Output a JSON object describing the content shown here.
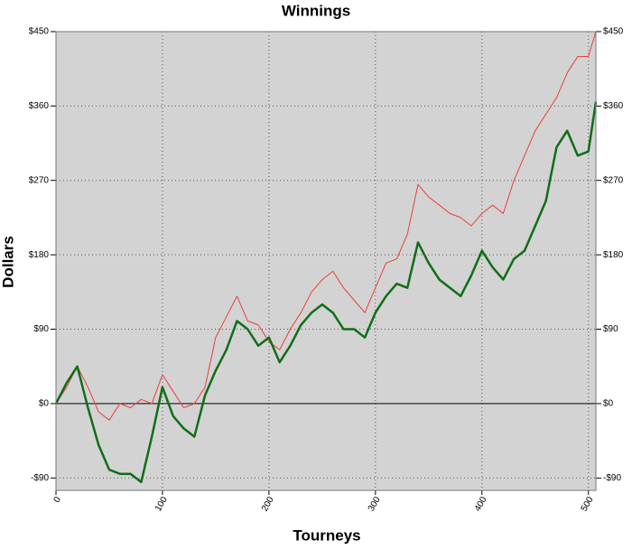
{
  "chart_data": {
    "type": "line",
    "title": "Winnings",
    "x_label": "Tourneys",
    "y_label": "Dollars",
    "x": [
      0,
      10,
      20,
      30,
      40,
      50,
      60,
      70,
      80,
      90,
      100,
      110,
      120,
      130,
      140,
      150,
      160,
      170,
      180,
      190,
      200,
      210,
      220,
      230,
      240,
      250,
      260,
      270,
      280,
      290,
      300,
      310,
      320,
      330,
      340,
      350,
      360,
      370,
      380,
      390,
      400,
      410,
      420,
      430,
      440,
      450,
      460,
      470,
      480,
      490,
      500,
      507
    ],
    "series": [
      {
        "name": "Winnings (red)",
        "color": "#e8403a",
        "width": 1,
        "values": [
          0,
          20,
          45,
          20,
          -10,
          -20,
          0,
          -5,
          5,
          0,
          35,
          15,
          -5,
          0,
          20,
          80,
          105,
          130,
          100,
          95,
          75,
          65,
          90,
          110,
          135,
          150,
          160,
          140,
          125,
          110,
          140,
          170,
          175,
          205,
          265,
          250,
          240,
          230,
          225,
          215,
          230,
          240,
          230,
          270,
          300,
          330,
          350,
          370,
          400,
          420,
          420,
          450
        ]
      },
      {
        "name": "Winnings (green)",
        "color": "#0f6e17",
        "width": 2.5,
        "values": [
          0,
          25,
          45,
          -5,
          -50,
          -80,
          -85,
          -85,
          -95,
          -40,
          20,
          -15,
          -30,
          -40,
          10,
          40,
          65,
          100,
          90,
          70,
          80,
          50,
          70,
          95,
          110,
          120,
          110,
          90,
          90,
          80,
          110,
          130,
          145,
          140,
          195,
          170,
          150,
          140,
          130,
          155,
          185,
          165,
          150,
          175,
          185,
          215,
          245,
          310,
          330,
          300,
          305,
          365
        ]
      }
    ],
    "xlim": [
      0,
      507
    ],
    "ylim": [
      -105,
      450
    ],
    "xticks": [
      0,
      100,
      200,
      300,
      400,
      500
    ],
    "yticks": [
      {
        "value": -90,
        "label": "-$90"
      },
      {
        "value": 0,
        "label": "$0"
      },
      {
        "value": 90,
        "label": "$90"
      },
      {
        "value": 180,
        "label": "$180"
      },
      {
        "value": 270,
        "label": "$270"
      },
      {
        "value": 360,
        "label": "$360"
      },
      {
        "value": 450,
        "label": "$450"
      }
    ],
    "grid": true,
    "mirror_y_labels": true,
    "plot_background": "#d3d3d3"
  }
}
